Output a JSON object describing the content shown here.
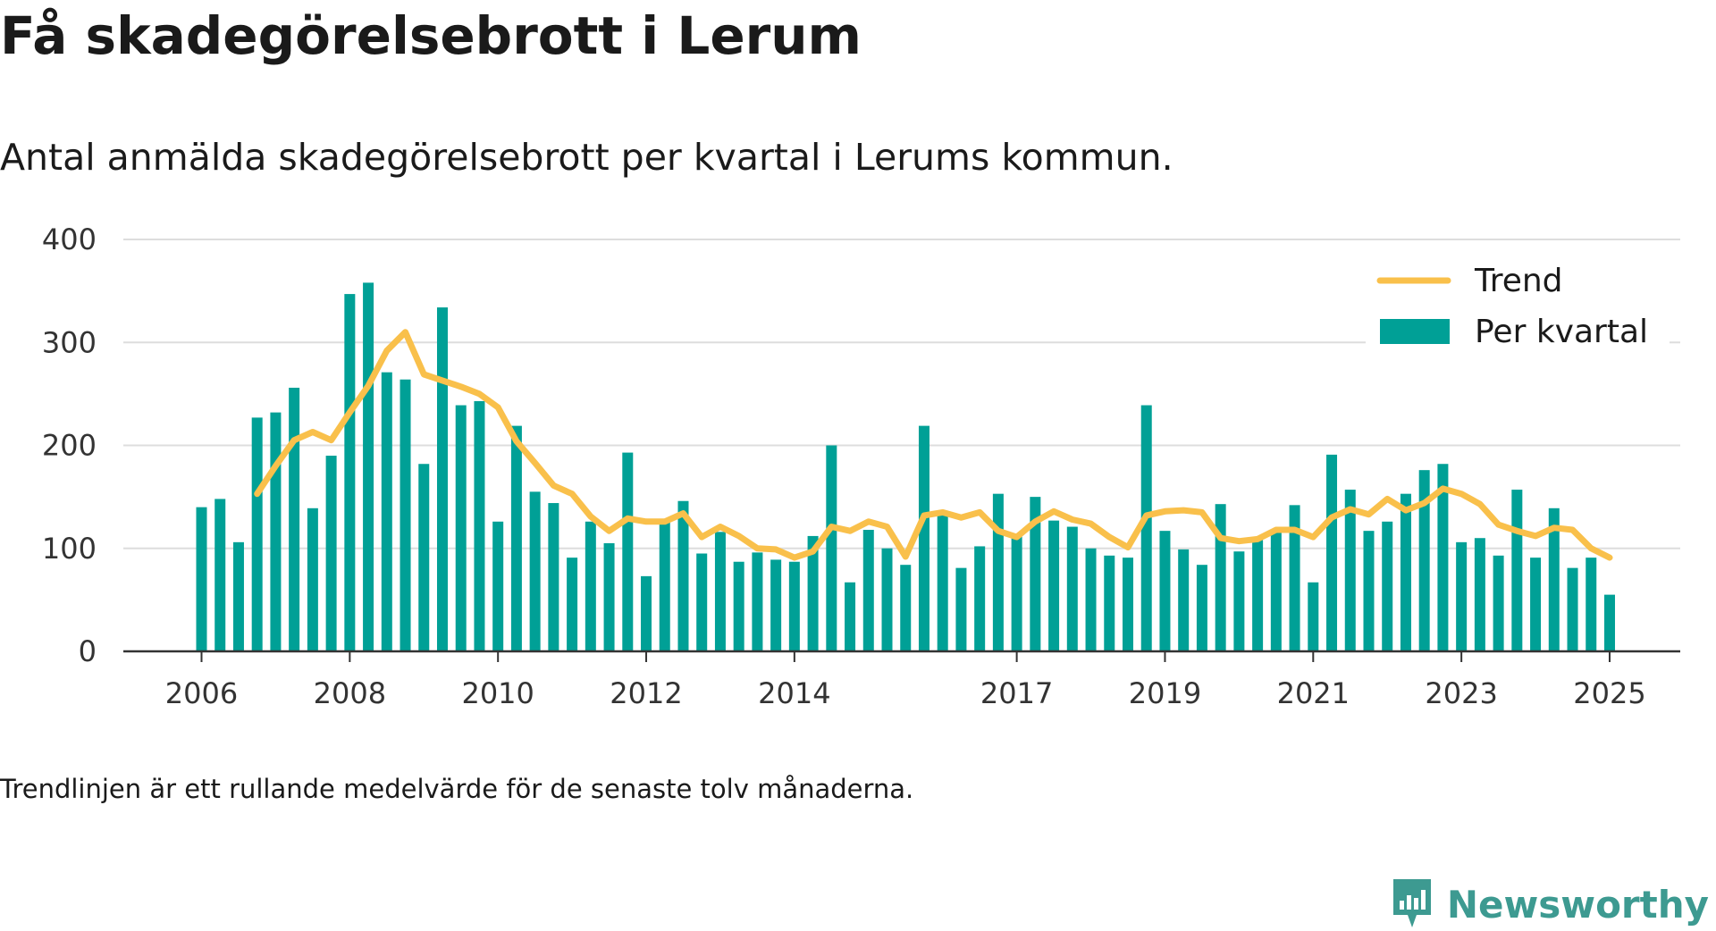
{
  "title": "Få skadegörelsebrott i Lerum",
  "subtitle": "Antal anmälda skadegörelsebrott per kvartal i Lerums kommun.",
  "footnote": "Trendlinjen är ett rullande medelvärde för de senaste tolv månaderna.",
  "brand": "Newsworthy",
  "colors": {
    "bars": "#00a096",
    "trend": "#f9c04b",
    "grid": "#dddddd",
    "axis": "#333333",
    "brand": "#3d9a91"
  },
  "chart_data": {
    "type": "bar",
    "title": "Få skadegörelsebrott i Lerum",
    "subtitle": "Antal anmälda skadegörelsebrott per kvartal i Lerums kommun.",
    "ylim": [
      0,
      400
    ],
    "y_ticks": [
      0,
      100,
      200,
      300,
      400
    ],
    "x_ticks": [
      "2006",
      "2008",
      "2010",
      "2012",
      "2014",
      "2017",
      "2019",
      "2021",
      "2023",
      "2025"
    ],
    "x_tick_index": [
      0,
      8,
      16,
      24,
      32,
      44,
      52,
      60,
      68,
      76
    ],
    "grid": true,
    "legend_position": "top-right",
    "series": [
      {
        "name": "Per kvartal",
        "type": "bar",
        "values": [
          140,
          148,
          106,
          227,
          232,
          256,
          139,
          190,
          347,
          358,
          271,
          264,
          182,
          334,
          239,
          243,
          126,
          219,
          155,
          144,
          91,
          126,
          105,
          193,
          73,
          125,
          146,
          95,
          116,
          87,
          96,
          89,
          87,
          112,
          200,
          67,
          118,
          100,
          84,
          219,
          133,
          81,
          102,
          153,
          113,
          150,
          127,
          121,
          100,
          93,
          91,
          239,
          117,
          99,
          84,
          143,
          97,
          108,
          118,
          142,
          67,
          191,
          157,
          117,
          126,
          153,
          176,
          182,
          106,
          110,
          93,
          157,
          91,
          139,
          81,
          91,
          55
        ]
      },
      {
        "name": "Trend",
        "type": "line",
        "start_index": 3,
        "values": [
          153,
          180,
          205,
          213,
          205,
          232,
          258,
          292,
          310,
          269,
          263,
          257,
          250,
          237,
          204,
          183,
          161,
          153,
          131,
          117,
          129,
          126,
          126,
          134,
          111,
          121,
          112,
          100,
          99,
          91,
          97,
          121,
          117,
          126,
          121,
          92,
          132,
          135,
          130,
          135,
          117,
          111,
          126,
          136,
          128,
          124,
          111,
          101,
          132,
          136,
          137,
          135,
          110,
          107,
          109,
          118,
          118,
          111,
          130,
          138,
          133,
          148,
          137,
          144,
          158,
          153,
          143,
          123,
          117,
          112,
          120,
          118,
          100,
          91
        ]
      }
    ]
  }
}
